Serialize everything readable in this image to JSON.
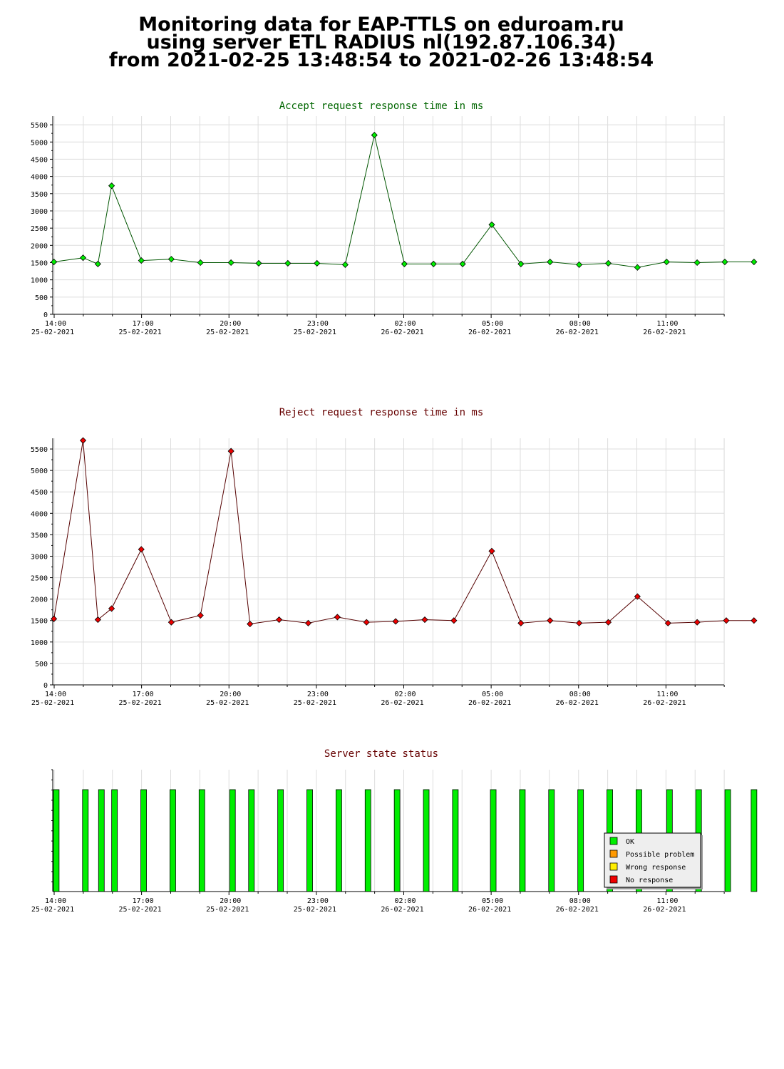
{
  "header": {
    "line1": "Monitoring data for EAP-TTLS on eduroam.ru",
    "line2": "using server ETL RADIUS nl(192.87.106.34)",
    "line3": "from 2021-02-25 13:48:54 to 2021-02-26 13:48:54"
  },
  "x_ticks": [
    {
      "time": "14:00",
      "date": "25-02-2021"
    },
    {
      "time": "17:00",
      "date": "25-02-2021"
    },
    {
      "time": "20:00",
      "date": "25-02-2021"
    },
    {
      "time": "23:00",
      "date": "25-02-2021"
    },
    {
      "time": "02:00",
      "date": "26-02-2021"
    },
    {
      "time": "05:00",
      "date": "26-02-2021"
    },
    {
      "time": "08:00",
      "date": "26-02-2021"
    },
    {
      "time": "11:00",
      "date": "26-02-2021"
    }
  ],
  "colors": {
    "accept": "#00ee00",
    "accept_line": "#005500",
    "reject": "#ee0000",
    "reject_line": "#550000",
    "title_accept": "#006600",
    "title_reject": "#660000",
    "ok": "#00ee00",
    "possible": "#ff9900",
    "wrong": "#ffee00",
    "none": "#ee0000"
  },
  "chart_data": [
    {
      "type": "line",
      "title": "Accept request response time in ms",
      "x_unit": "hours since 14:00 25-02-2021",
      "x": [
        -0.18,
        0.82,
        1.33,
        1.8,
        2.82,
        3.85,
        4.85,
        5.9,
        6.85,
        7.85,
        8.85,
        9.82,
        10.82,
        11.85,
        12.85,
        13.85,
        14.85,
        15.85,
        16.85,
        17.85,
        18.85,
        19.85,
        20.85,
        21.9,
        22.85,
        23.85
      ],
      "values": [
        1520,
        1640,
        1460,
        3730,
        1560,
        1600,
        1500,
        1500,
        1480,
        1480,
        1480,
        1440,
        5200,
        1460,
        1460,
        1460,
        2600,
        1460,
        1520,
        1440,
        1480,
        1360,
        1520,
        1500,
        1520,
        1520
      ],
      "ylim": [
        0,
        5750
      ],
      "yticks": [
        0,
        500,
        1000,
        1500,
        2000,
        2500,
        3000,
        3500,
        4000,
        4500,
        5000,
        5500
      ],
      "grid": true
    },
    {
      "type": "line",
      "title": "Reject request response time in ms",
      "x_unit": "hours since 14:00 25-02-2021",
      "x": [
        -0.18,
        0.82,
        1.33,
        1.8,
        2.82,
        3.85,
        4.85,
        5.9,
        6.55,
        7.55,
        8.55,
        9.55,
        10.55,
        11.55,
        12.55,
        13.55,
        14.85,
        15.85,
        16.85,
        17.85,
        18.85,
        19.85,
        20.9,
        21.9,
        22.9,
        23.85
      ],
      "values": [
        1540,
        5700,
        1520,
        1780,
        3160,
        1460,
        1620,
        5450,
        1420,
        1520,
        1440,
        1580,
        1460,
        1480,
        1520,
        1500,
        3120,
        1440,
        1500,
        1440,
        1460,
        2060,
        1440,
        1460,
        1500,
        1500
      ],
      "ylim": [
        0,
        5750
      ],
      "yticks": [
        0,
        500,
        1000,
        1500,
        2000,
        2500,
        3000,
        3500,
        4000,
        4500,
        5000,
        5500
      ],
      "grid": true
    },
    {
      "type": "bar",
      "title": "Server state status",
      "x_unit": "hours since 14:00 25-02-2021",
      "x": [
        -0.1,
        0.9,
        1.45,
        1.9,
        2.9,
        3.9,
        4.9,
        5.95,
        6.6,
        7.6,
        8.6,
        9.6,
        10.6,
        11.6,
        12.6,
        13.6,
        14.9,
        15.9,
        16.9,
        17.9,
        18.9,
        19.9,
        20.95,
        21.95,
        22.95,
        23.85
      ],
      "status": [
        "OK",
        "OK",
        "OK",
        "OK",
        "OK",
        "OK",
        "OK",
        "OK",
        "OK",
        "OK",
        "OK",
        "OK",
        "OK",
        "OK",
        "OK",
        "OK",
        "OK",
        "OK",
        "OK",
        "OK",
        "OK",
        "OK",
        "OK",
        "OK",
        "OK",
        "OK"
      ],
      "legend": [
        "OK",
        "Possible problem",
        "Wrong response",
        "No response"
      ],
      "legend_position": "bottom-right"
    }
  ]
}
